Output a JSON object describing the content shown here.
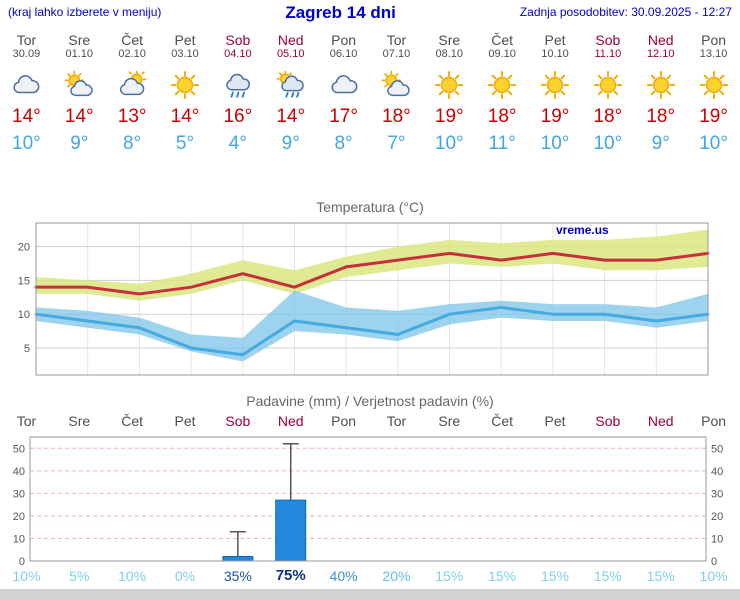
{
  "header": {
    "left_note": "(kraj lahko izberete v meniju)",
    "title": "Zagreb 14 dni",
    "updated": "Zadnja posodobitev: 30.09.2025 - 12:27"
  },
  "colors": {
    "header_blue": "#0000cc",
    "weekday": "#4d4d4d",
    "weekend": "#a00030",
    "tmax": "#cc0000",
    "tmin": "#3fa6e8"
  },
  "days": [
    {
      "name": "Tor",
      "date": "30.09",
      "weekend": false,
      "icon": "cloudy",
      "tmax": "14°",
      "tmin": "10°"
    },
    {
      "name": "Sre",
      "date": "01.10",
      "weekend": false,
      "icon": "partly-cloudy",
      "tmax": "14°",
      "tmin": "9°"
    },
    {
      "name": "Čet",
      "date": "02.10",
      "weekend": false,
      "icon": "mostly-cloudy",
      "tmax": "13°",
      "tmin": "8°"
    },
    {
      "name": "Pet",
      "date": "03.10",
      "weekend": false,
      "icon": "sunny",
      "tmax": "14°",
      "tmin": "5°"
    },
    {
      "name": "Sob",
      "date": "04.10",
      "weekend": true,
      "icon": "rain",
      "tmax": "16°",
      "tmin": "4°"
    },
    {
      "name": "Ned",
      "date": "05.10",
      "weekend": true,
      "icon": "rain-sun",
      "tmax": "14°",
      "tmin": "9°"
    },
    {
      "name": "Pon",
      "date": "06.10",
      "weekend": false,
      "icon": "cloudy",
      "tmax": "17°",
      "tmin": "8°"
    },
    {
      "name": "Tor",
      "date": "07.10",
      "weekend": false,
      "icon": "partly-cloudy",
      "tmax": "18°",
      "tmin": "7°"
    },
    {
      "name": "Sre",
      "date": "08.10",
      "weekend": false,
      "icon": "sunny",
      "tmax": "19°",
      "tmin": "10°"
    },
    {
      "name": "Čet",
      "date": "09.10",
      "weekend": false,
      "icon": "sunny",
      "tmax": "18°",
      "tmin": "11°"
    },
    {
      "name": "Pet",
      "date": "10.10",
      "weekend": false,
      "icon": "sunny",
      "tmax": "19°",
      "tmin": "10°"
    },
    {
      "name": "Sob",
      "date": "11.10",
      "weekend": true,
      "icon": "sunny",
      "tmax": "18°",
      "tmin": "10°"
    },
    {
      "name": "Ned",
      "date": "12.10",
      "weekend": true,
      "icon": "sunny",
      "tmax": "18°",
      "tmin": "9°"
    },
    {
      "name": "Pon",
      "date": "13.10",
      "weekend": false,
      "icon": "sunny",
      "tmax": "19°",
      "tmin": "10°"
    }
  ],
  "chart_data": [
    {
      "type": "line",
      "title": "Temperatura (°C)",
      "watermark": "vreme.us",
      "x": [
        "Tor 30.09",
        "Sre 01.10",
        "Čet 02.10",
        "Pet 03.10",
        "Sob 04.10",
        "Ned 05.10",
        "Pon 06.10",
        "Tor 07.10",
        "Sre 08.10",
        "Čet 09.10",
        "Pet 10.10",
        "Sob 11.10",
        "Ned 12.10",
        "Pon 13.10"
      ],
      "ylim": [
        1,
        23.5
      ],
      "yticks": [
        5,
        10,
        15,
        20
      ],
      "series": [
        {
          "name": "max",
          "color": "#c62f3c",
          "values": [
            14,
            14,
            13,
            14,
            16,
            14,
            17,
            18,
            19,
            18,
            19,
            18,
            18,
            19
          ]
        },
        {
          "name": "max_band_upper",
          "color": "#d9e67f",
          "values": [
            15.5,
            15,
            14.5,
            16,
            18,
            16.5,
            18.5,
            20,
            21,
            20.5,
            21,
            21,
            21.5,
            22.5
          ]
        },
        {
          "name": "max_band_lower",
          "color": "#d9e67f",
          "values": [
            13,
            13,
            12,
            13,
            15,
            13,
            15.5,
            16.5,
            17.5,
            17,
            17.5,
            16.5,
            16.5,
            17
          ]
        },
        {
          "name": "min",
          "color": "#45aadf",
          "values": [
            10,
            9,
            8,
            5,
            4,
            9,
            8,
            7,
            10,
            11,
            10,
            10,
            9,
            10
          ]
        },
        {
          "name": "min_band_upper",
          "color": "#7cc4e8",
          "values": [
            11,
            10.5,
            9.5,
            7,
            6.5,
            13.5,
            11,
            10.5,
            11.5,
            12,
            11.5,
            11.5,
            11,
            13
          ]
        },
        {
          "name": "min_band_lower",
          "color": "#7cc4e8",
          "values": [
            9,
            8,
            7,
            4.5,
            3,
            7.5,
            7,
            6,
            8.5,
            9.5,
            9,
            9,
            8,
            9
          ]
        }
      ]
    },
    {
      "type": "bar",
      "title": "Padavine (mm) / Verjetnost padavin (%)",
      "categories": [
        "Tor",
        "Sre",
        "Čet",
        "Pet",
        "Sob",
        "Ned",
        "Pon",
        "Tor",
        "Sre",
        "Čet",
        "Pet",
        "Sob",
        "Ned",
        "Pon"
      ],
      "weekend": [
        false,
        false,
        false,
        false,
        true,
        true,
        false,
        false,
        false,
        false,
        false,
        true,
        true,
        false
      ],
      "values": [
        0,
        0,
        0,
        0,
        2,
        27,
        0,
        0,
        0,
        0,
        0,
        0,
        0,
        0
      ],
      "whisker_max": [
        0,
        0,
        0,
        0,
        13,
        52,
        0,
        0,
        0,
        0,
        0,
        0,
        0,
        0
      ],
      "probabilities": [
        "10%",
        "5%",
        "10%",
        "0%",
        "35%",
        "75%",
        "40%",
        "20%",
        "15%",
        "15%",
        "15%",
        "15%",
        "15%",
        "10%"
      ],
      "prob_colors": [
        "#7fd0e0",
        "#7fd0e0",
        "#7fd0e0",
        "#7fd0e0",
        "#1c4fa0",
        "#0d2f8a",
        "#3d8fd6",
        "#63bfe0",
        "#7fd0e0",
        "#7fd0e0",
        "#7fd0e0",
        "#7fd0e0",
        "#7fd0e0",
        "#7fd0e0"
      ],
      "ylim": [
        0,
        55
      ],
      "yticks": [
        0,
        10,
        20,
        30,
        40,
        50
      ],
      "bar_color": "#2288dd"
    }
  ]
}
